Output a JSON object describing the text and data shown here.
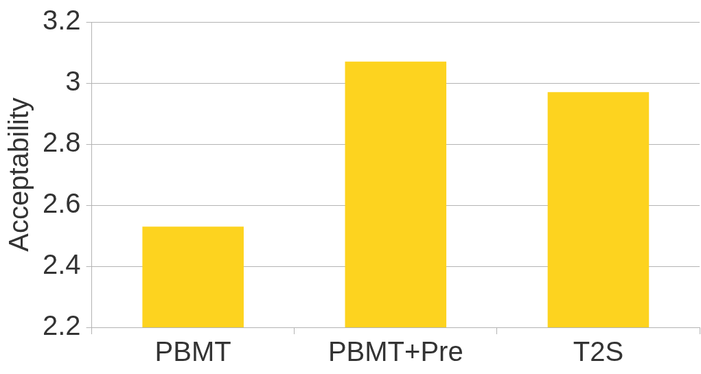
{
  "chart_data": {
    "type": "bar",
    "ylabel": "Acceptability",
    "categories": [
      "PBMT",
      "PBMT+Pre",
      "T2S"
    ],
    "values": [
      2.53,
      3.07,
      2.97
    ],
    "color": "#fdd31f",
    "ylim": [
      2.2,
      3.2
    ],
    "yticks": [
      2.2,
      2.4,
      2.6,
      2.8,
      3,
      3.2
    ],
    "grid": "y",
    "legend": false
  }
}
